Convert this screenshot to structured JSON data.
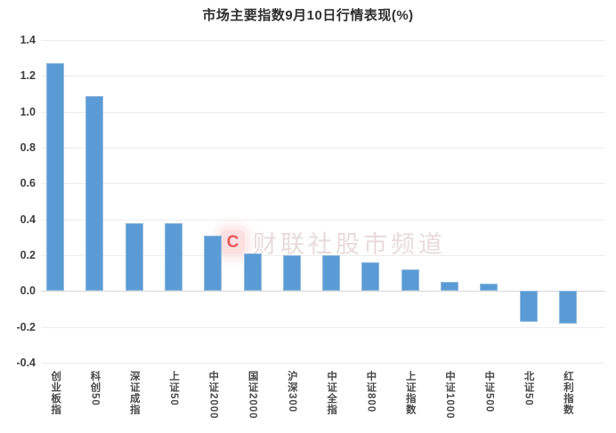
{
  "chart_data": {
    "type": "bar",
    "title": "市场主要指数9月10日行情表现(%)",
    "categories": [
      "创业板指",
      "科创50",
      "深证成指",
      "上证50",
      "中证2000",
      "国证2000",
      "沪深300",
      "中证全指",
      "中证800",
      "上证指数",
      "中证1000",
      "中证500",
      "北证50",
      "红利指数"
    ],
    "values": [
      1.27,
      1.09,
      0.38,
      0.38,
      0.31,
      0.21,
      0.2,
      0.2,
      0.16,
      0.12,
      0.05,
      0.04,
      -0.17,
      -0.18
    ],
    "xlabel": "",
    "ylabel": "",
    "ylim": [
      -0.4,
      1.4
    ],
    "ytick_step": 0.2,
    "yticks": [
      "1.4",
      "1.2",
      "1.0",
      "0.8",
      "0.6",
      "0.4",
      "0.2",
      "0.0",
      "-0.2",
      "-0.4"
    ],
    "grid": "horizontal",
    "legend": "none",
    "bar_color": "#5B9BD5",
    "bar_border_color": "#8FBADE",
    "gridline_color": "#ECECEC",
    "axis_line_color": "#D8D8D8"
  },
  "watermark": {
    "logo_letter": "C",
    "text": "财联社股市频道",
    "logo_color": "#E8575A",
    "logo_bg": "#FBE0E0",
    "text_color": "rgba(214,187,187,0.55)"
  }
}
